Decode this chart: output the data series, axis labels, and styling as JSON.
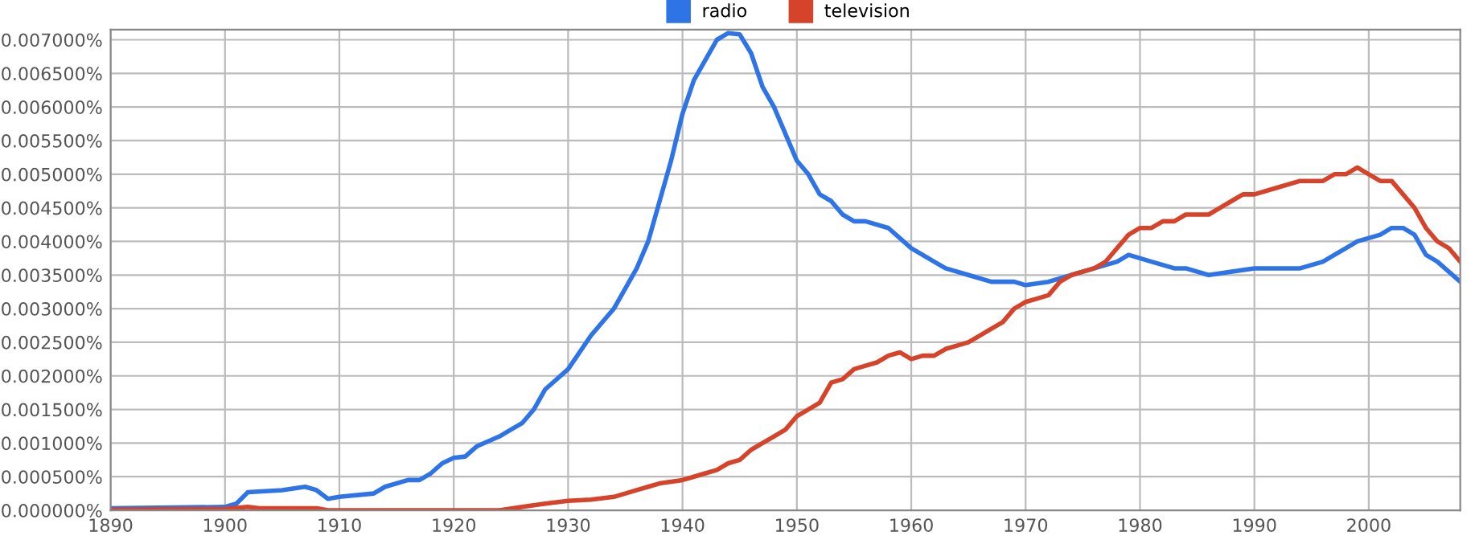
{
  "chart_data": {
    "type": "line",
    "series": [
      {
        "name": "radio",
        "color": "#2e74e6",
        "x": [
          1890,
          1900,
          1901,
          1902,
          1905,
          1907,
          1908,
          1909,
          1910,
          1913,
          1914,
          1916,
          1917,
          1918,
          1919,
          1920,
          1921,
          1922,
          1924,
          1925,
          1926,
          1927,
          1928,
          1930,
          1932,
          1934,
          1936,
          1937,
          1938,
          1939,
          1940,
          1941,
          1942,
          1943,
          1944,
          1945,
          1946,
          1947,
          1948,
          1949,
          1950,
          1951,
          1952,
          1953,
          1954,
          1955,
          1956,
          1958,
          1960,
          1962,
          1963,
          1965,
          1967,
          1969,
          1970,
          1972,
          1974,
          1976,
          1978,
          1979,
          1981,
          1983,
          1984,
          1986,
          1990,
          1994,
          1996,
          1997,
          1998,
          1999,
          2001,
          2002,
          2003,
          2004,
          2005,
          2006,
          2008
        ],
        "values": [
          3e-05,
          5e-05,
          0.0001,
          0.00027,
          0.0003,
          0.00035,
          0.0003,
          0.00017,
          0.0002,
          0.00025,
          0.00035,
          0.00045,
          0.00045,
          0.00055,
          0.0007,
          0.00078,
          0.0008,
          0.00095,
          0.0011,
          0.0012,
          0.0013,
          0.0015,
          0.0018,
          0.0021,
          0.0026,
          0.003,
          0.0036,
          0.004,
          0.0046,
          0.0052,
          0.0059,
          0.0064,
          0.0067,
          0.007,
          0.0071,
          0.00708,
          0.0068,
          0.0063,
          0.006,
          0.0056,
          0.0052,
          0.005,
          0.0047,
          0.0046,
          0.0044,
          0.0043,
          0.0043,
          0.0042,
          0.0039,
          0.0037,
          0.0036,
          0.0035,
          0.0034,
          0.0034,
          0.00335,
          0.0034,
          0.0035,
          0.0036,
          0.0037,
          0.0038,
          0.0037,
          0.0036,
          0.0036,
          0.0035,
          0.0036,
          0.0036,
          0.0037,
          0.0038,
          0.0039,
          0.004,
          0.0041,
          0.0042,
          0.0042,
          0.0041,
          0.0038,
          0.0037,
          0.0034
        ]
      },
      {
        "name": "television",
        "color": "#d6432b",
        "x": [
          1890,
          1900,
          1902,
          1903,
          1908,
          1909,
          1920,
          1924,
          1926,
          1928,
          1930,
          1932,
          1934,
          1936,
          1937,
          1938,
          1940,
          1941,
          1942,
          1943,
          1944,
          1945,
          1946,
          1947,
          1948,
          1949,
          1950,
          1951,
          1952,
          1953,
          1954,
          1955,
          1956,
          1957,
          1958,
          1959,
          1960,
          1961,
          1962,
          1963,
          1964,
          1965,
          1966,
          1967,
          1968,
          1969,
          1970,
          1971,
          1972,
          1973,
          1974,
          1976,
          1977,
          1978,
          1979,
          1980,
          1981,
          1982,
          1983,
          1984,
          1986,
          1987,
          1988,
          1989,
          1990,
          1992,
          1994,
          1996,
          1997,
          1998,
          1999,
          2000,
          2001,
          2002,
          2003,
          2004,
          2005,
          2006,
          2007,
          2008
        ],
        "values": [
          1e-05,
          2e-05,
          5e-05,
          3e-05,
          3e-05,
          0.0,
          0.0,
          0.0,
          5e-05,
          0.0001,
          0.00014,
          0.00016,
          0.0002,
          0.0003,
          0.00035,
          0.0004,
          0.00045,
          0.0005,
          0.00055,
          0.0006,
          0.0007,
          0.00075,
          0.0009,
          0.001,
          0.0011,
          0.0012,
          0.0014,
          0.0015,
          0.0016,
          0.0019,
          0.00195,
          0.0021,
          0.00215,
          0.0022,
          0.0023,
          0.00235,
          0.00225,
          0.0023,
          0.0023,
          0.0024,
          0.00245,
          0.0025,
          0.0026,
          0.0027,
          0.0028,
          0.003,
          0.0031,
          0.00315,
          0.0032,
          0.0034,
          0.0035,
          0.0036,
          0.0037,
          0.0039,
          0.0041,
          0.0042,
          0.0042,
          0.0043,
          0.0043,
          0.0044,
          0.0044,
          0.0045,
          0.0046,
          0.0047,
          0.0047,
          0.0048,
          0.0049,
          0.0049,
          0.005,
          0.005,
          0.0051,
          0.005,
          0.0049,
          0.0049,
          0.0047,
          0.0045,
          0.0042,
          0.004,
          0.0039,
          0.0037
        ]
      }
    ],
    "xlim": [
      1890,
      2008
    ],
    "xticks": [
      1890,
      1900,
      1910,
      1920,
      1930,
      1940,
      1950,
      1960,
      1970,
      1980,
      1990,
      2000
    ],
    "ylim": [
      0,
      0.00715
    ],
    "yticks": [
      {
        "value": 0,
        "label": "0.000000%"
      },
      {
        "value": 0.0005,
        "label": "0.000500%"
      },
      {
        "value": 0.001,
        "label": "0.001000%"
      },
      {
        "value": 0.0015,
        "label": "0.001500%"
      },
      {
        "value": 0.002,
        "label": "0.002000%"
      },
      {
        "value": 0.0025,
        "label": "0.002500%"
      },
      {
        "value": 0.003,
        "label": "0.003000%"
      },
      {
        "value": 0.0035,
        "label": "0.003500%"
      },
      {
        "value": 0.004,
        "label": "0.004000%"
      },
      {
        "value": 0.0045,
        "label": "0.004500%"
      },
      {
        "value": 0.005,
        "label": "0.005000%"
      },
      {
        "value": 0.0055,
        "label": "0.005500%"
      },
      {
        "value": 0.006,
        "label": "0.006000%"
      },
      {
        "value": 0.0065,
        "label": "0.006500%"
      },
      {
        "value": 0.007,
        "label": "0.007000%"
      }
    ],
    "grid": true,
    "legend": "top",
    "marker": "none",
    "line_style": "solid"
  }
}
